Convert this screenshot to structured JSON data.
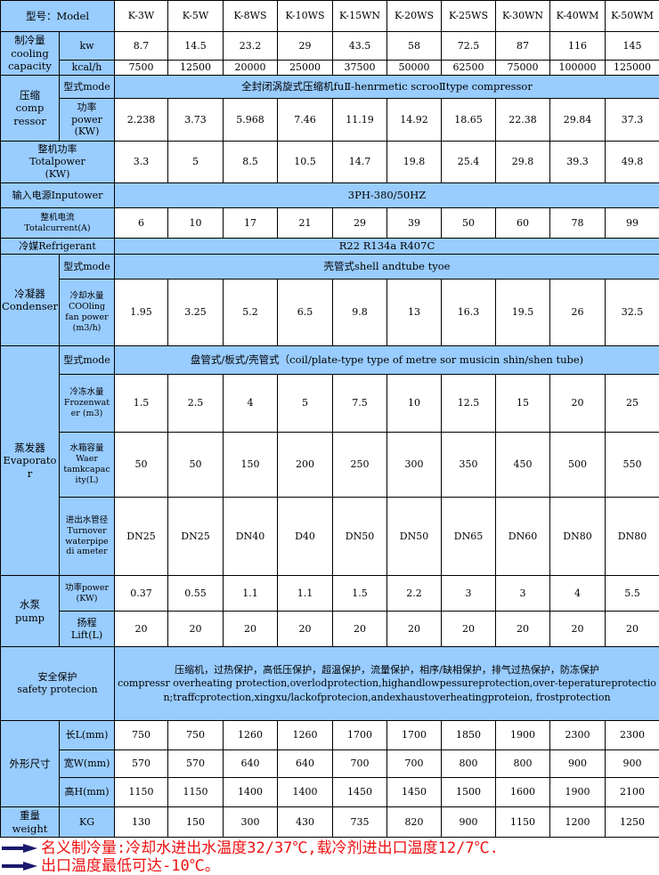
{
  "header": {
    "label": "型号：Model",
    "models": [
      "K-3W",
      "K-5W",
      "K-8WS",
      "K-10WS",
      "K-15WN",
      "K-20WS",
      "K-25WS",
      "K-30WN",
      "K-40WM",
      "K-50WM"
    ]
  },
  "sections": [
    {
      "label": "制冷量\ncooling\ncapacity",
      "rows": [
        {
          "label": "kw",
          "values": [
            "8.7",
            "14.5",
            "23.2",
            "29",
            "43.5",
            "58",
            "72.5",
            "87",
            "116",
            "145"
          ]
        },
        {
          "label": "kcal/h",
          "values": [
            "7500",
            "12500",
            "20000",
            "25000",
            "37500",
            "50000",
            "62500",
            "75000",
            "100000",
            "125000"
          ]
        }
      ]
    },
    {
      "label": "压缩\ncomp\nressor",
      "rows": [
        {
          "label": "型式mode",
          "span": "全封闭涡旋式压缩机fuⅡ-henrmetic scrooⅡtype compressor"
        },
        {
          "label": "功率\npower\n(KW)",
          "values": [
            "2.238",
            "3.73",
            "5.968",
            "7.46",
            "11.19",
            "14.92",
            "18.65",
            "22.38",
            "29.84",
            "37.3"
          ]
        }
      ]
    },
    {
      "label": "整机功率\nTotalpower\n(KW)",
      "values": [
        "3.3",
        "5",
        "8.5",
        "10.5",
        "14.7",
        "19.8",
        "25.4",
        "29.8",
        "39.3",
        "49.8"
      ]
    },
    {
      "label": "输入电源Inputower",
      "span": "3PH-380/50HZ"
    },
    {
      "label": "整机电流\nTotalcurrent(A)",
      "small": true,
      "values": [
        "6",
        "10",
        "17",
        "21",
        "29",
        "39",
        "50",
        "60",
        "78",
        "99"
      ]
    },
    {
      "label": "冷媒Refrigerant",
      "span": "R22 R134a R407C"
    },
    {
      "label": "冷凝器\nCondenser",
      "rows": [
        {
          "label": "型式mode",
          "span": "壳管式shell andtube tyoe"
        },
        {
          "label": "冷却水量\nCOOling\nfan power\n(m3/h)",
          "small": true,
          "values": [
            "1.95",
            "3.25",
            "5.2",
            "6.5",
            "9.8",
            "13",
            "16.3",
            "19.5",
            "26",
            "32.5"
          ]
        }
      ]
    },
    {
      "label": "蒸发器\nEvaporator",
      "small": true,
      "rows": [
        {
          "label": "型式mode",
          "span": "盘管式/板式/壳管式（coil/plate-type type of metre sor musicin shin/shen tube)"
        },
        {
          "label": "冷冻水量\nFrozenwat\ner (m3)",
          "small": true,
          "values": [
            "1.5",
            "2.5",
            "4",
            "5",
            "7.5",
            "10",
            "12.5",
            "15",
            "20",
            "25"
          ]
        },
        {
          "label": "水箱容量\nWaer\ntamkcapac\nity(L)",
          "small": true,
          "values": [
            "50",
            "50",
            "150",
            "200",
            "250",
            "300",
            "350",
            "450",
            "500",
            "550"
          ]
        },
        {
          "label": "进出水管径\nTurnover\nwaterpipe\ndi ameter",
          "small": true,
          "values": [
            "DN25",
            "DN25",
            "DN40",
            "D40",
            "DN50",
            "DN50",
            "DN65",
            "DN60",
            "DN80",
            "DN80"
          ]
        }
      ]
    },
    {
      "label": "水泵\npump",
      "rows": [
        {
          "label": "功率power\n(KW)",
          "small": true,
          "values": [
            "0.37",
            "0.55",
            "1.1",
            "1.1",
            "1.5",
            "2.2",
            "3",
            "3",
            "4",
            "5.5"
          ]
        },
        {
          "label": "扬程\nLift(L)",
          "values": [
            "20",
            "20",
            "20",
            "20",
            "20",
            "20",
            "20",
            "20",
            "20",
            "20"
          ]
        }
      ]
    },
    {
      "label": "安全保护\nsafety protecion",
      "span": "压缩机，过热保护，高低压保护，超温保护，流量保护，相序/缺相保护，排气过热保护，防冻保护\ncompressr overheating protection,overlodprotection,highandlowpessureprotection,over-teperatureprotection;traffcprotection,xingxu/lackofprotecion,andexhaustoverheatingproteion,     frostprotection",
      "safety": true
    },
    {
      "label": "外形尺寸",
      "rows": [
        {
          "label": "长L(mm)",
          "values": [
            "750",
            "750",
            "1260",
            "1260",
            "1700",
            "1700",
            "1850",
            "1900",
            "2300",
            "2300"
          ]
        },
        {
          "label": "宽W(mm)",
          "values": [
            "570",
            "570",
            "640",
            "640",
            "700",
            "700",
            "800",
            "800",
            "900",
            "900"
          ]
        },
        {
          "label": "高H(mm)",
          "values": [
            "1150",
            "1150",
            "1400",
            "1400",
            "1450",
            "1450",
            "1500",
            "1600",
            "1900",
            "2100"
          ]
        }
      ]
    },
    {
      "label": "重量\nweight",
      "rows": [
        {
          "label": "KG",
          "values": [
            "130",
            "150",
            "300",
            "430",
            "735",
            "820",
            "900",
            "1150",
            "1200",
            "1250"
          ]
        }
      ]
    }
  ],
  "notes": [
    "名义制冷量:冷却水进出水温度32/37℃,载冷剂进出口温度12/7℃.",
    "出口温度最低可达-10℃。"
  ],
  "colors": {
    "header_fill": "#99ccff",
    "note_text": "#ee1111",
    "arrow": "#1a1a6e"
  }
}
